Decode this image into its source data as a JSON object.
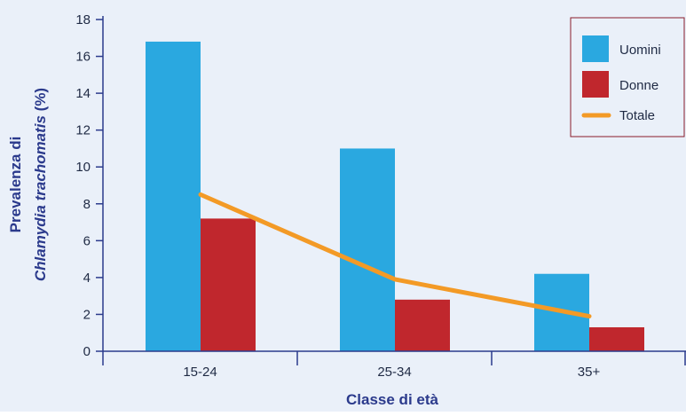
{
  "colors": {
    "background": "#eaf0f9",
    "axis": "#2b3a8c",
    "title_text": "#2b3a8c",
    "uomini": "#2aa8e0",
    "donne": "#c0272d",
    "totale": "#f39a26",
    "legend_border": "#8a1c2b"
  },
  "chart_data": {
    "type": "bar",
    "categories": [
      "15-24",
      "25-34",
      "35+"
    ],
    "series": [
      {
        "name": "Uomini",
        "type": "bar",
        "values": [
          16.8,
          11.0,
          4.2
        ]
      },
      {
        "name": "Donne",
        "type": "bar",
        "values": [
          7.2,
          2.8,
          1.3
        ]
      },
      {
        "name": "Totale",
        "type": "line",
        "values": [
          8.5,
          3.9,
          1.9
        ]
      }
    ],
    "xlabel": "Classe di età",
    "ylabel_line1": "Prevalenza di",
    "ylabel_line2_italic": "Chlamydia trachomatis",
    "ylabel_line2_suffix": " (%)",
    "ylim": [
      0,
      18
    ],
    "yticks": [
      0,
      2,
      4,
      6,
      8,
      10,
      12,
      14,
      16,
      18
    ],
    "grid": false,
    "legend_position": "top-right"
  }
}
